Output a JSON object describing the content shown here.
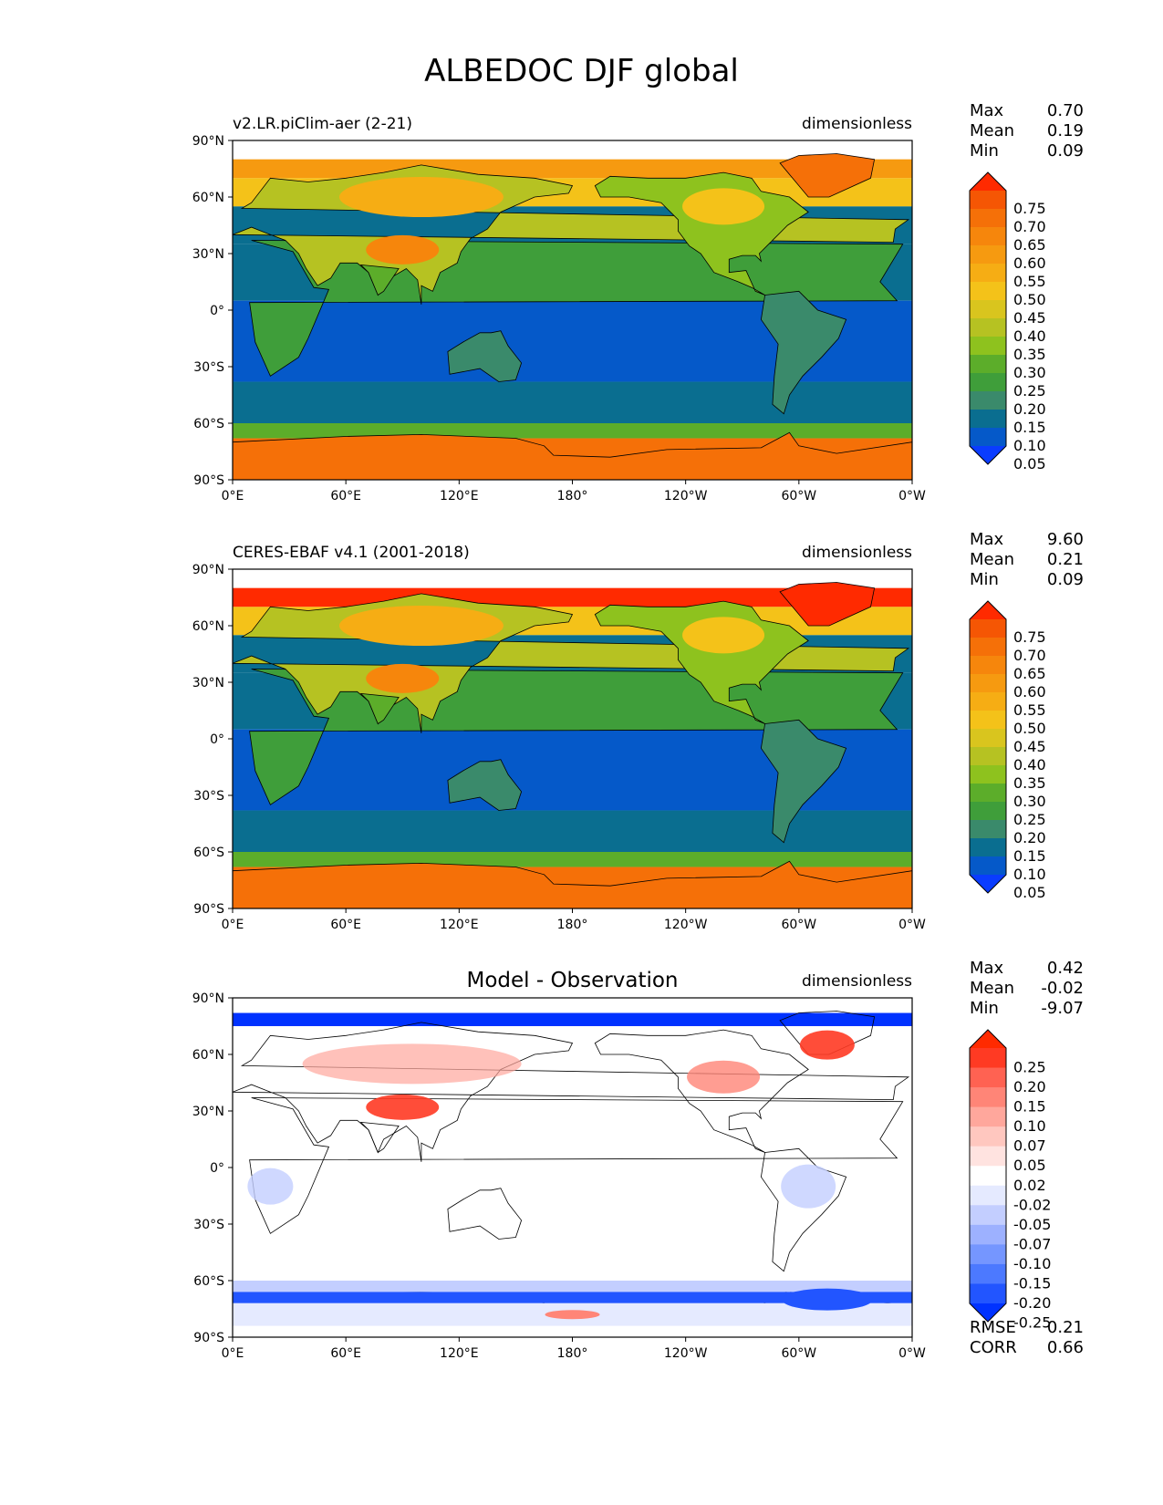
{
  "title": "ALBEDOC DJF global",
  "axes": {
    "lat_ticks": [
      "90°N",
      "60°N",
      "30°N",
      "0°",
      "30°S",
      "60°S",
      "90°S"
    ],
    "lon_ticks": [
      "0°E",
      "60°E",
      "120°E",
      "180°",
      "120°W",
      "60°W",
      "0°W"
    ]
  },
  "stat_labels": {
    "max": "Max",
    "mean": "Mean",
    "min": "Min",
    "rmse": "RMSE",
    "corr": "CORR"
  },
  "panels": [
    {
      "subtitle": "v2.LR.piClim-aer (2-21)",
      "units": "dimensionless",
      "stats": {
        "max": "0.70",
        "mean": "0.19",
        "min": "0.09"
      },
      "colorbar": [
        "0.75",
        "0.70",
        "0.65",
        "0.60",
        "0.55",
        "0.50",
        "0.45",
        "0.40",
        "0.35",
        "0.30",
        "0.25",
        "0.20",
        "0.15",
        "0.10",
        "0.05"
      ]
    },
    {
      "subtitle": "CERES-EBAF v4.1 (2001-2018)",
      "units": "dimensionless",
      "stats": {
        "max": "9.60",
        "mean": "0.21",
        "min": "0.09"
      },
      "colorbar": [
        "0.75",
        "0.70",
        "0.65",
        "0.60",
        "0.55",
        "0.50",
        "0.45",
        "0.40",
        "0.35",
        "0.30",
        "0.25",
        "0.20",
        "0.15",
        "0.10",
        "0.05"
      ]
    },
    {
      "subtitle": "Model - Observation",
      "units": "dimensionless",
      "stats": {
        "max": "0.42",
        "mean": "-0.02",
        "min": "-9.07",
        "rmse": "0.21",
        "corr": "0.66"
      },
      "colorbar": [
        "0.25",
        "0.20",
        "0.15",
        "0.10",
        "0.07",
        "0.05",
        "0.02",
        "-0.02",
        "-0.05",
        "-0.07",
        "-0.10",
        "-0.15",
        "-0.20",
        "-0.25"
      ]
    }
  ],
  "colors": {
    "seq": [
      "#0a3cff",
      "#0559c9",
      "#0a6e90",
      "#3a8a6b",
      "#3f9e3a",
      "#5cad2a",
      "#8ec21e",
      "#b6c222",
      "#d9c51e",
      "#f4c219",
      "#f6ad14",
      "#f69a10",
      "#f6860c",
      "#f57008",
      "#f55604",
      "#ff2a00"
    ],
    "div": [
      "#0032ff",
      "#2255ff",
      "#4c79ff",
      "#7596ff",
      "#9db1ff",
      "#c3ceff",
      "#e5eaff",
      "#ffffff",
      "#ffe3e0",
      "#ffc7bf",
      "#ffa79c",
      "#ff8577",
      "#ff6252",
      "#ff3a23",
      "#ff2a00"
    ]
  }
}
